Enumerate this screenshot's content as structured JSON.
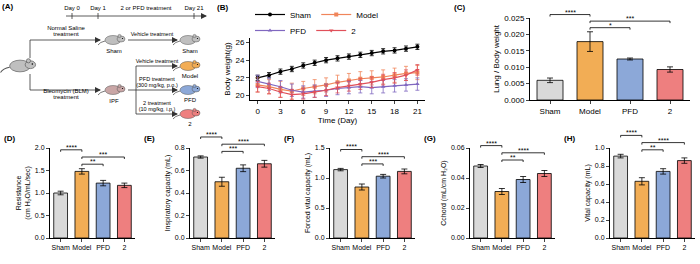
{
  "diagram": {
    "panel": "(A)",
    "timeline": [
      "Day 0",
      "Day 1",
      "2 or PFD treatment",
      "Day 21"
    ],
    "induction": [
      {
        "treatment": [
          "Normal Saline",
          "treatment"
        ],
        "group": "Sham"
      },
      {
        "treatment": [
          "Bleomycin (BLM)",
          "treatment"
        ],
        "group": "IPF"
      }
    ],
    "arms": [
      {
        "treatment": [
          "Vehicle treatment"
        ],
        "group": "Sham"
      },
      {
        "treatment": [
          "Vehicle treatment"
        ],
        "group": "Model"
      },
      {
        "treatment": [
          "PFD treatment",
          "(300 mg/kg, p.o.)"
        ],
        "group": "PFD"
      },
      {
        "treatment": [
          "2 treatment",
          "(10 mg/kg, i.p.)"
        ],
        "group": "2"
      }
    ]
  },
  "chart_data": [
    {
      "type": "line",
      "panel": "(B)",
      "x_label": "Time (Day)",
      "y_label": "Body weight(g)",
      "x": [
        0,
        1.5,
        3,
        4.5,
        6,
        7.5,
        9,
        10.5,
        12,
        13.5,
        15,
        16.5,
        18,
        19.5,
        21
      ],
      "xlim": [
        -1,
        22
      ],
      "xticks": [
        0,
        3,
        6,
        9,
        12,
        15,
        18,
        21
      ],
      "ylim": [
        19.5,
        26.5
      ],
      "yticks": [
        20,
        22,
        24,
        26
      ],
      "grid": false,
      "legend": "top",
      "series": [
        {
          "name": "Sham",
          "color": "#000000",
          "marker": "circle",
          "values": [
            22.0,
            22.3,
            22.7,
            23.0,
            23.4,
            23.7,
            24.0,
            24.2,
            24.4,
            24.6,
            24.8,
            25.0,
            25.1,
            25.3,
            25.5
          ],
          "errors": [
            0.3,
            0.3,
            0.3,
            0.3,
            0.3,
            0.3,
            0.3,
            0.3,
            0.3,
            0.3,
            0.3,
            0.3,
            0.3,
            0.3,
            0.3
          ]
        },
        {
          "name": "Model",
          "color": "#f0855a",
          "marker": "square",
          "values": [
            21.2,
            21.0,
            20.7,
            20.5,
            20.8,
            21.0,
            21.2,
            21.5,
            21.7,
            21.9,
            22.0,
            22.1,
            22.3,
            22.5,
            22.6
          ],
          "errors": [
            0.8,
            0.8,
            0.9,
            0.9,
            0.8,
            0.8,
            0.8,
            0.8,
            0.8,
            0.8,
            0.8,
            0.8,
            0.8,
            0.8,
            0.8
          ]
        },
        {
          "name": "PFD",
          "color": "#8068c0",
          "marker": "triangle-up",
          "values": [
            21.6,
            21.3,
            21.0,
            20.6,
            20.4,
            20.5,
            20.6,
            20.8,
            20.9,
            21.0,
            20.9,
            21.0,
            21.1,
            21.2,
            21.3
          ],
          "errors": [
            0.7,
            0.7,
            0.7,
            0.7,
            0.7,
            0.7,
            0.7,
            0.7,
            0.7,
            0.7,
            0.7,
            0.7,
            0.7,
            0.7,
            0.7
          ]
        },
        {
          "name": "2",
          "color": "#e0505a",
          "marker": "triangle-down",
          "values": [
            21.0,
            20.8,
            20.4,
            20.1,
            20.2,
            20.4,
            20.6,
            20.9,
            21.1,
            21.3,
            21.5,
            21.8,
            22.0,
            22.3,
            22.9
          ],
          "errors": [
            0.6,
            0.6,
            0.6,
            0.6,
            0.6,
            0.6,
            0.6,
            0.6,
            0.6,
            0.6,
            0.6,
            0.6,
            0.6,
            0.6,
            0.6
          ]
        }
      ]
    },
    {
      "type": "bar",
      "panel": "(C)",
      "y_label": "Lung / Body weight",
      "categories": [
        "Sham",
        "Model",
        "PFD",
        "2"
      ],
      "values": [
        0.006,
        0.0178,
        0.0125,
        0.0093
      ],
      "errors": [
        0.0007,
        0.003,
        0.0003,
        0.0008
      ],
      "colors": [
        "#d9d9d9",
        "#f2ad55",
        "#8ca8d8",
        "#ee7f7f"
      ],
      "ylim": [
        0,
        0.025
      ],
      "yticks": [
        {
          "value": 0,
          "label": "0.000"
        },
        0.005,
        {
          "value": 0.01,
          "label": "0.010"
        },
        0.015,
        {
          "value": 0.02,
          "label": "0.020"
        },
        0.025
      ],
      "grid": false,
      "significance": [
        {
          "between": [
            "Model",
            "PFD"
          ],
          "label": "*"
        },
        {
          "between": [
            "Model",
            "2"
          ],
          "label": "***"
        },
        {
          "between": [
            "Sham",
            "Model"
          ],
          "label": "****"
        }
      ]
    },
    {
      "type": "bar",
      "panel": "(D)",
      "y_label": [
        "Resistance",
        "(cm H₂O/mL/sec)"
      ],
      "categories": [
        "Sham",
        "Model",
        "PFD",
        "2"
      ],
      "values": [
        1.0,
        1.48,
        1.22,
        1.17
      ],
      "errors": [
        0.04,
        0.06,
        0.06,
        0.05
      ],
      "colors": [
        "#d9d9d9",
        "#f2ad55",
        "#8ca8d8",
        "#ee7f7f"
      ],
      "ylim": [
        0,
        2
      ],
      "yticks": [
        {
          "value": 0,
          "label": "0.0"
        },
        0.5,
        {
          "value": 1,
          "label": "1.0"
        },
        1.5,
        {
          "value": 2,
          "label": "2.0"
        }
      ],
      "grid": false,
      "significance": [
        {
          "between": [
            "Model",
            "PFD"
          ],
          "label": "**"
        },
        {
          "between": [
            "Model",
            "2"
          ],
          "label": "***"
        },
        {
          "between": [
            "Sham",
            "Model"
          ],
          "label": "****"
        }
      ]
    },
    {
      "type": "bar",
      "panel": "(E)",
      "y_label": "Inspiratory capacity (mL)",
      "categories": [
        "Sham",
        "Model",
        "PFD",
        "2"
      ],
      "values": [
        0.72,
        0.5,
        0.62,
        0.66
      ],
      "errors": [
        0.01,
        0.04,
        0.03,
        0.03
      ],
      "colors": [
        "#d9d9d9",
        "#f2ad55",
        "#8ca8d8",
        "#ee7f7f"
      ],
      "ylim": [
        0,
        0.8
      ],
      "yticks": [
        {
          "value": 0,
          "label": "0.0"
        },
        0.2,
        0.4,
        0.6,
        0.8
      ],
      "grid": false,
      "significance": [
        {
          "between": [
            "Model",
            "PFD"
          ],
          "label": "***"
        },
        {
          "between": [
            "Model",
            "2"
          ],
          "label": "****"
        },
        {
          "between": [
            "Sham",
            "Model"
          ],
          "label": "****"
        }
      ]
    },
    {
      "type": "bar",
      "panel": "(F)",
      "y_label": "Forced vital capacity (mL)",
      "categories": [
        "Sham",
        "Model",
        "PFD",
        "2"
      ],
      "values": [
        1.14,
        0.85,
        1.03,
        1.11
      ],
      "errors": [
        0.02,
        0.05,
        0.03,
        0.04
      ],
      "colors": [
        "#d9d9d9",
        "#f2ad55",
        "#8ca8d8",
        "#ee7f7f"
      ],
      "ylim": [
        0,
        1.5
      ],
      "yticks": [
        {
          "value": 0,
          "label": "0.0"
        },
        0.5,
        {
          "value": 1,
          "label": "1.0"
        },
        1.5
      ],
      "grid": false,
      "significance": [
        {
          "between": [
            "Model",
            "PFD"
          ],
          "label": "***"
        },
        {
          "between": [
            "Model",
            "2"
          ],
          "label": "****"
        },
        {
          "between": [
            "Sham",
            "Model"
          ],
          "label": "****"
        }
      ]
    },
    {
      "type": "bar",
      "panel": "(G)",
      "y_label": "Cchord (mL/cm H₂O)",
      "categories": [
        "Sham",
        "Model",
        "PFD",
        "2"
      ],
      "values": [
        0.048,
        0.031,
        0.039,
        0.043
      ],
      "errors": [
        0.001,
        0.002,
        0.002,
        0.002
      ],
      "colors": [
        "#d9d9d9",
        "#f2ad55",
        "#8ca8d8",
        "#ee7f7f"
      ],
      "ylim": [
        0,
        0.06
      ],
      "yticks": [
        {
          "value": 0,
          "label": "0.00"
        },
        0.02,
        0.04,
        0.06
      ],
      "grid": false,
      "significance": [
        {
          "between": [
            "Model",
            "PFD"
          ],
          "label": "**"
        },
        {
          "between": [
            "Model",
            "2"
          ],
          "label": "****"
        },
        {
          "between": [
            "Sham",
            "Model"
          ],
          "label": "****"
        }
      ]
    },
    {
      "type": "bar",
      "panel": "(H)",
      "y_label": "Vital capacity (mL)",
      "categories": [
        "Sham",
        "Model",
        "PFD",
        "2"
      ],
      "values": [
        0.91,
        0.63,
        0.74,
        0.86
      ],
      "errors": [
        0.02,
        0.04,
        0.03,
        0.03
      ],
      "colors": [
        "#d9d9d9",
        "#f2ad55",
        "#8ca8d8",
        "#ee7f7f"
      ],
      "ylim": [
        0,
        1
      ],
      "yticks": [
        {
          "value": 0,
          "label": "0.0"
        },
        0.2,
        0.4,
        0.6,
        0.8,
        {
          "value": 1,
          "label": "1.0"
        }
      ],
      "grid": false,
      "significance": [
        {
          "between": [
            "Model",
            "PFD"
          ],
          "label": "**"
        },
        {
          "between": [
            "Model",
            "2"
          ],
          "label": "****"
        },
        {
          "between": [
            "Sham",
            "Model"
          ],
          "label": "****"
        }
      ]
    }
  ]
}
